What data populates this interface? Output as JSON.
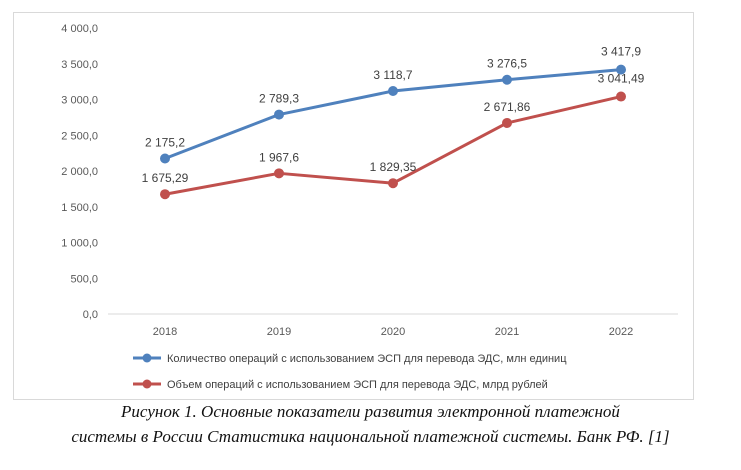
{
  "chart_data": {
    "type": "line",
    "categories": [
      "2018",
      "2019",
      "2020",
      "2021",
      "2022"
    ],
    "series": [
      {
        "name": "Количество операций с использованием ЭСП для перевода ЭДС, млн  единиц",
        "values": [
          2175.2,
          2789.3,
          3118.7,
          3276.5,
          3417.9
        ],
        "labels": [
          "2 175,2",
          "2 789,3",
          "3 118,7",
          "3 276,5",
          "3 417,9"
        ],
        "color": "#4f81bd"
      },
      {
        "name": "Объем операций с использованием ЭСП для перевода ЭДС, млрд  рублей",
        "values": [
          1675.29,
          1967.6,
          1829.35,
          2671.86,
          3041.49
        ],
        "labels": [
          "1 675,29",
          "1 967,6",
          "1 829,35",
          "2 671,86",
          "3 041,49"
        ],
        "color": "#c0504d"
      }
    ],
    "ylim": [
      0,
      4000
    ],
    "yticks": [
      0,
      500,
      1000,
      1500,
      2000,
      2500,
      3000,
      3500,
      4000
    ],
    "ytick_labels": [
      "0,0",
      "500,0",
      "1 000,0",
      "1 500,0",
      "2 000,0",
      "2 500,0",
      "3 000,0",
      "3 500,0",
      "4 000,0"
    ],
    "grid": false,
    "legend_position": "bottom"
  },
  "caption": {
    "line1": "Рисунок 1. Основные показатели развития электронной платежной",
    "line2": "системы в России Статистика национальной платежной системы. Банк РФ. [1]"
  }
}
